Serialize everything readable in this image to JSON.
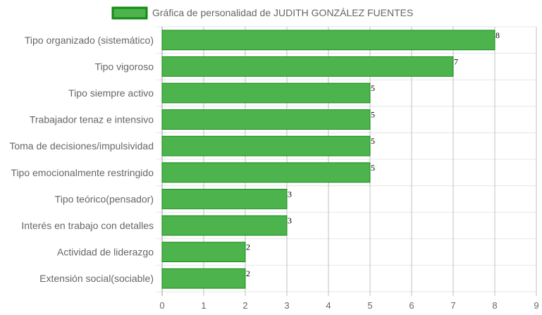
{
  "chart_data": {
    "type": "bar",
    "orientation": "horizontal",
    "categories": [
      "Tipo organizado (sistemático)",
      "Tipo vigoroso",
      "Tipo siempre activo",
      "Trabajador tenaz e intensivo",
      "Toma de decisiones/impulsividad",
      "Tipo emocionalmente restringido",
      "Tipo teórico(pensador)",
      "Interés en trabajo con detalles",
      "Actividad de liderazgo",
      "Extensión social(sociable)"
    ],
    "series": [
      {
        "name": "Gráfica de personalidad de JUDITH GONZÁLEZ FUENTES",
        "values": [
          8,
          7,
          5,
          5,
          5,
          5,
          3,
          3,
          2,
          2
        ],
        "color": "#4db44d",
        "border_color": "#138a13"
      }
    ],
    "data_labels": [
      "8",
      "7",
      "5",
      "5",
      "5",
      "5",
      "3",
      "3",
      "2",
      "2"
    ],
    "x_ticks": [
      "0",
      "1",
      "2",
      "3",
      "4",
      "5",
      "6",
      "7",
      "8",
      "9"
    ],
    "xlim": [
      0,
      9
    ],
    "grid": true,
    "legend_position": "top"
  }
}
